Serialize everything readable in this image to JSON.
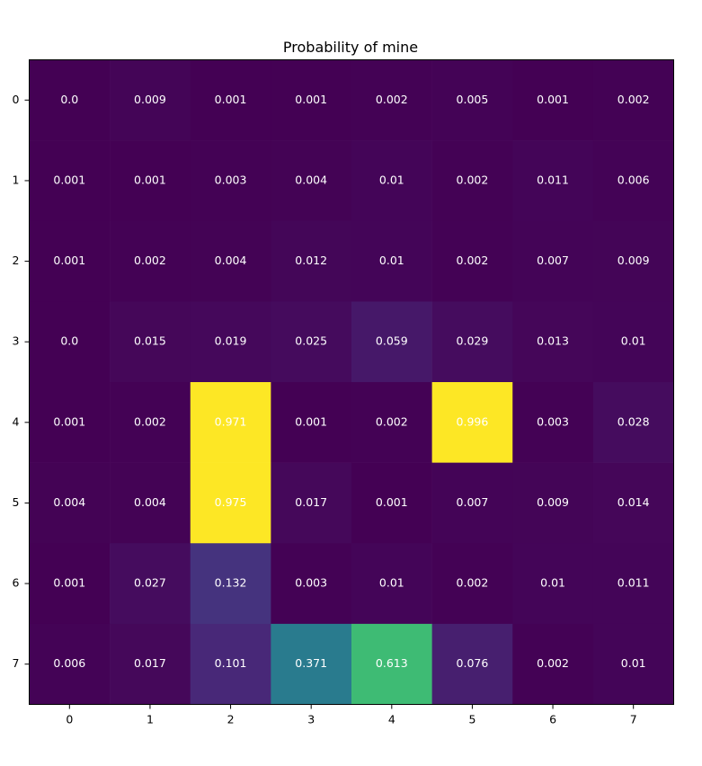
{
  "chart_data": {
    "type": "heatmap",
    "title": "Probability of mine",
    "xlabel": "",
    "ylabel": "",
    "x_categories": [
      "0",
      "1",
      "2",
      "3",
      "4",
      "5",
      "6",
      "7"
    ],
    "y_categories": [
      "0",
      "1",
      "2",
      "3",
      "4",
      "5",
      "6",
      "7"
    ],
    "values": [
      [
        0.0,
        0.009,
        0.001,
        0.001,
        0.002,
        0.005,
        0.001,
        0.002
      ],
      [
        0.001,
        0.001,
        0.003,
        0.004,
        0.01,
        0.002,
        0.011,
        0.006
      ],
      [
        0.001,
        0.002,
        0.004,
        0.012,
        0.01,
        0.002,
        0.007,
        0.009
      ],
      [
        0.0,
        0.015,
        0.019,
        0.025,
        0.059,
        0.029,
        0.013,
        0.01
      ],
      [
        0.001,
        0.002,
        0.971,
        0.001,
        0.002,
        0.996,
        0.003,
        0.028
      ],
      [
        0.004,
        0.004,
        0.975,
        0.017,
        0.001,
        0.007,
        0.009,
        0.014
      ],
      [
        0.001,
        0.027,
        0.132,
        0.003,
        0.01,
        0.002,
        0.01,
        0.011
      ],
      [
        0.006,
        0.017,
        0.101,
        0.371,
        0.613,
        0.076,
        0.002,
        0.01
      ]
    ],
    "value_labels": [
      [
        "0.0",
        "0.009",
        "0.001",
        "0.001",
        "0.002",
        "0.005",
        "0.001",
        "0.002"
      ],
      [
        "0.001",
        "0.001",
        "0.003",
        "0.004",
        "0.01",
        "0.002",
        "0.011",
        "0.006"
      ],
      [
        "0.001",
        "0.002",
        "0.004",
        "0.012",
        "0.01",
        "0.002",
        "0.007",
        "0.009"
      ],
      [
        "0.0",
        "0.015",
        "0.019",
        "0.025",
        "0.059",
        "0.029",
        "0.013",
        "0.01"
      ],
      [
        "0.001",
        "0.002",
        "0.971",
        "0.001",
        "0.002",
        "0.996",
        "0.003",
        "0.028"
      ],
      [
        "0.004",
        "0.004",
        "0.975",
        "0.017",
        "0.001",
        "0.007",
        "0.009",
        "0.014"
      ],
      [
        "0.001",
        "0.027",
        "0.132",
        "0.003",
        "0.01",
        "0.002",
        "0.01",
        "0.011"
      ],
      [
        "0.006",
        "0.017",
        "0.101",
        "0.371",
        "0.613",
        "0.076",
        "0.002",
        "0.01"
      ]
    ],
    "value_range": [
      0,
      0.996
    ],
    "colormap": "viridis",
    "colorbar": false,
    "grid": false,
    "legend": "none",
    "cell_label_color": "#ffffff"
  }
}
